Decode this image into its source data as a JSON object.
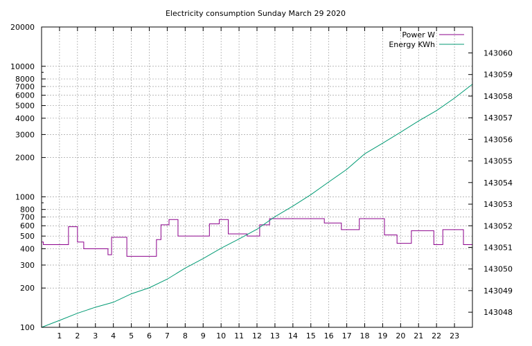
{
  "chart_data": {
    "type": "line",
    "title": "Electricity consumption Sunday March 29 2020",
    "xlim": [
      0,
      24
    ],
    "x_ticks": [
      1,
      2,
      3,
      4,
      5,
      6,
      7,
      8,
      9,
      10,
      11,
      12,
      13,
      14,
      15,
      16,
      17,
      18,
      19,
      20,
      21,
      22,
      23
    ],
    "y_left": {
      "scale": "log",
      "range": [
        100,
        20000
      ],
      "ticks": [
        100,
        200,
        300,
        400,
        500,
        600,
        700,
        800,
        1000,
        2000,
        3000,
        4000,
        5000,
        6000,
        7000,
        8000,
        10000,
        20000
      ],
      "labeled_ticks": [
        100,
        200,
        300,
        400,
        500,
        600,
        700,
        800,
        1000,
        2000,
        3000,
        4000,
        5000,
        6000,
        7000,
        8000,
        10000,
        20000
      ]
    },
    "y_right": {
      "scale": "linear",
      "range": [
        143047.3,
        143061.2
      ],
      "ticks": [
        143048,
        143049,
        143050,
        143051,
        143052,
        143053,
        143054,
        143055,
        143056,
        143057,
        143058,
        143059,
        143060
      ]
    },
    "grid": true,
    "legend_position": "top-right",
    "series": [
      {
        "name": "Power W",
        "color": "#8b008b",
        "axis": "left",
        "step": true,
        "x": [
          0,
          0.1,
          1.5,
          2.0,
          2.35,
          3.7,
          3.9,
          4.75,
          6.4,
          6.65,
          7.1,
          7.6,
          9.35,
          9.9,
          10.4,
          11.45,
          12.15,
          12.7,
          15.75,
          16.7,
          17.7,
          19.1,
          19.8,
          20.6,
          21.85,
          22.35,
          23.5,
          24
        ],
        "values": [
          450,
          430,
          590,
          450,
          400,
          360,
          490,
          350,
          470,
          610,
          670,
          500,
          620,
          670,
          520,
          500,
          610,
          680,
          630,
          560,
          680,
          510,
          440,
          550,
          430,
          560,
          430,
          430
        ]
      },
      {
        "name": "Energy KWh",
        "color": "#009a73",
        "axis": "right",
        "step": false,
        "x": [
          0,
          1,
          2,
          3,
          4,
          5,
          6,
          7,
          8,
          9,
          10,
          11,
          12,
          13,
          14,
          15,
          16,
          17,
          18,
          19,
          20,
          21,
          22,
          23,
          24
        ],
        "values": [
          143047.3,
          143047.62,
          143047.95,
          143048.23,
          143048.46,
          143048.85,
          143049.13,
          143049.53,
          143050.04,
          143050.48,
          143050.96,
          143051.39,
          143051.84,
          143052.42,
          143052.91,
          143053.44,
          143054.03,
          143054.61,
          143055.33,
          143055.82,
          143056.33,
          143056.85,
          143057.33,
          143057.91,
          143058.55
        ]
      }
    ]
  }
}
